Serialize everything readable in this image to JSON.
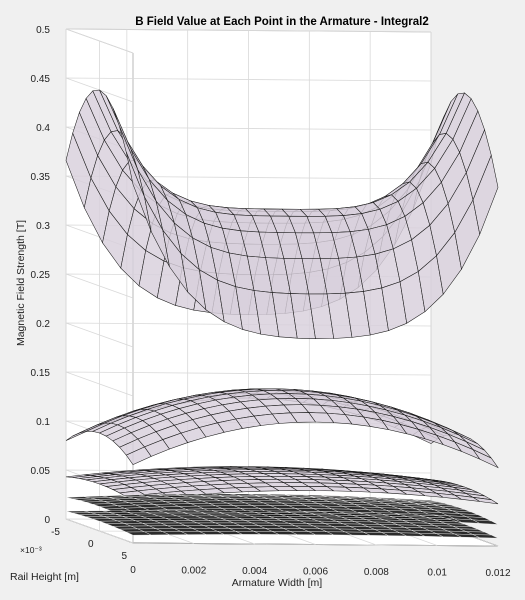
{
  "chart_data": {
    "type": "surface",
    "title": "B Field Value at Each Point in the Armature - Integral2",
    "xlabel": "Armature Width [m]",
    "ylabel": "Rail Height [m]",
    "zlabel": "Magnetic Field Strength [T]",
    "xlim": [
      0,
      0.012
    ],
    "ylim": [
      -0.005,
      0.005
    ],
    "zlim": [
      0,
      0.5
    ],
    "x_ticks": [
      "0",
      "0.002",
      "0.004",
      "0.006",
      "0.008",
      "0.01",
      "0.012"
    ],
    "y_ticks": [
      "-5",
      "0",
      "5"
    ],
    "y_exponent": "×10⁻³",
    "z_ticks": [
      "0",
      "0.05",
      "0.1",
      "0.15",
      "0.2",
      "0.25",
      "0.3",
      "0.35",
      "0.4",
      "0.45",
      "0.5"
    ],
    "grid": true,
    "colors": {
      "background": "#f0f0f0",
      "axes_face": "#ffffff",
      "grid": "#d9d9d9",
      "mesh_line": "#1a1a1a",
      "surface_face": "#d8d0dc",
      "surface_face_dark": "#151515"
    },
    "surfaces": [
      {
        "name": "",
        "edge_value": 0.45,
        "center_value": 0.33,
        "rail_end_drop": 0.12,
        "shape": "saddle"
      },
      {
        "name": "",
        "edge_value": 0.1,
        "center_value": 0.145,
        "rail_end_drop": 0.02,
        "shape": "dome"
      },
      {
        "name": "",
        "edge_value": 0.048,
        "center_value": 0.06,
        "rail_end_drop": 0.005,
        "shape": "dome"
      },
      {
        "name": "",
        "edge_value": 0.025,
        "center_value": 0.03,
        "rail_end_drop": 0.003,
        "shape": "flat"
      },
      {
        "name": "",
        "edge_value": 0.01,
        "center_value": 0.012,
        "rail_end_drop": 0.002,
        "shape": "flat"
      }
    ]
  }
}
